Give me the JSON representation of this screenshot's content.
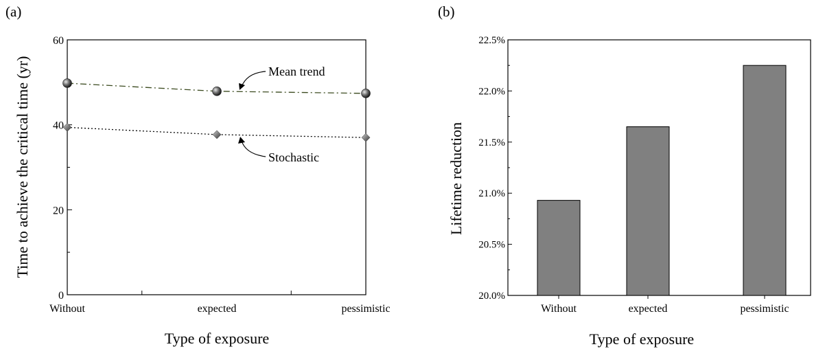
{
  "chart_data": [
    {
      "panel_label": "(a)",
      "type": "line",
      "categories": [
        "Without",
        "expected",
        "pessimistic"
      ],
      "series": [
        {
          "name": "Mean trend",
          "values": [
            49.8,
            47.9,
            47.4
          ],
          "color": "#3b4a1f",
          "linestyle": "dash-dot",
          "marker": "sphere"
        },
        {
          "name": "Stochastic",
          "values": [
            39.4,
            37.7,
            37.0
          ],
          "color": "#000000",
          "linestyle": "dotted",
          "marker": "diamond"
        }
      ],
      "xlabel": "Type of exposure",
      "ylabel": "Time to achieve the critical time (yr)",
      "ylim": [
        0,
        60
      ],
      "yticks": [
        "0",
        "20",
        "40",
        "60"
      ],
      "grid": false
    },
    {
      "panel_label": "(b)",
      "type": "bar",
      "categories": [
        "Without",
        "expected",
        "pessimistic"
      ],
      "values": [
        20.93,
        21.65,
        22.25
      ],
      "bar_color": "#808080",
      "xlabel": "Type of exposure",
      "ylabel": "Lifetime reduction",
      "ylim": [
        20.0,
        22.5
      ],
      "yticks": [
        "20.0%",
        "20.5%",
        "21.0%",
        "21.5%",
        "22.0%",
        "22.5%"
      ],
      "grid": false
    }
  ]
}
